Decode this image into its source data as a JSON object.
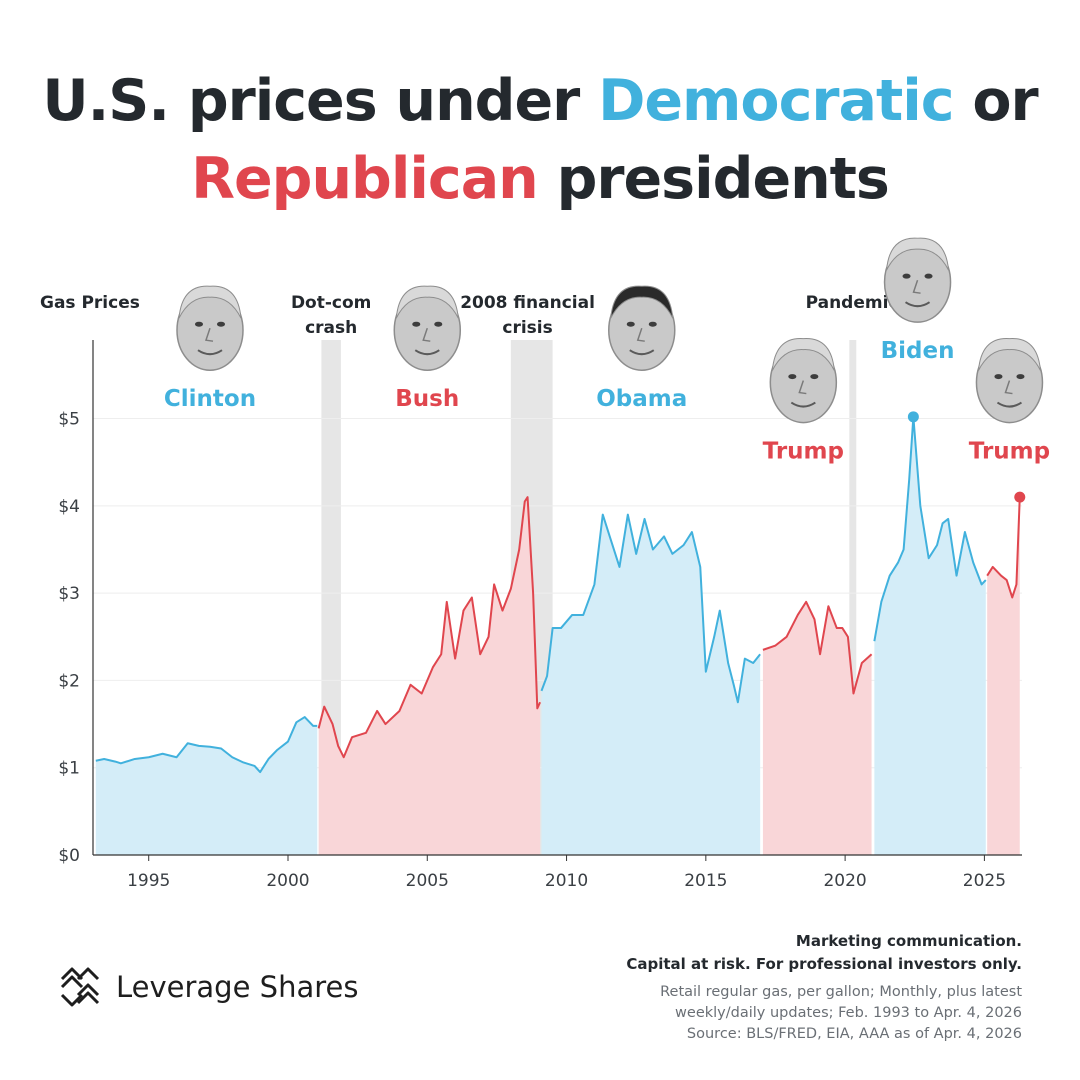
{
  "title": {
    "part1": "U.S. prices under ",
    "democratic": "Democratic",
    "part2": " or",
    "republican": "Republican",
    "part3": " presidents"
  },
  "colors": {
    "democratic": "#41b1dd",
    "democratic_fill": "#d4edf8",
    "republican": "#e0464e",
    "republican_fill": "#f9d6d8",
    "recession": "#e6e6e6",
    "text": "#24292e"
  },
  "chart_data": {
    "type": "area",
    "title": "U.S. prices under Democratic or Republican presidents",
    "ylabel": "Gas Prices",
    "xlabel": "",
    "xlim": [
      1993.0,
      2026.35
    ],
    "ylim": [
      0,
      5.9
    ],
    "x_ticks": [
      1995,
      2000,
      2005,
      2010,
      2015,
      2020,
      2025
    ],
    "y_ticks": [
      {
        "value": 0,
        "label": "$0"
      },
      {
        "value": 1,
        "label": "$1"
      },
      {
        "value": 2,
        "label": "$2"
      },
      {
        "value": 3,
        "label": "$3"
      },
      {
        "value": 4,
        "label": "$4"
      },
      {
        "value": 5,
        "label": "$5"
      }
    ],
    "recessions": [
      {
        "label": "Dot-com crash",
        "start": 2001.2,
        "end": 2001.9
      },
      {
        "label": "2008 financial crisis",
        "start": 2008.0,
        "end": 2009.5
      },
      {
        "label": "Pandemic",
        "start": 2020.15,
        "end": 2020.4
      }
    ],
    "recession_labels": [
      {
        "lines": [
          "Dot-com",
          "crash"
        ],
        "x": 2001.55
      },
      {
        "lines": [
          "2008 financial",
          "crisis"
        ],
        "x": 2008.6
      },
      {
        "lines": [
          "Pandemic"
        ],
        "x": 2020.25
      }
    ],
    "series": [
      {
        "name": "Clinton",
        "party": "democratic",
        "points": [
          [
            1993.1,
            1.08
          ],
          [
            1993.4,
            1.1
          ],
          [
            1993.8,
            1.07
          ],
          [
            1994.0,
            1.05
          ],
          [
            1994.5,
            1.1
          ],
          [
            1995.0,
            1.12
          ],
          [
            1995.5,
            1.16
          ],
          [
            1996.0,
            1.12
          ],
          [
            1996.4,
            1.28
          ],
          [
            1996.8,
            1.25
          ],
          [
            1997.2,
            1.24
          ],
          [
            1997.6,
            1.22
          ],
          [
            1998.0,
            1.12
          ],
          [
            1998.4,
            1.06
          ],
          [
            1998.8,
            1.02
          ],
          [
            1999.0,
            0.95
          ],
          [
            1999.3,
            1.1
          ],
          [
            1999.6,
            1.2
          ],
          [
            2000.0,
            1.3
          ],
          [
            2000.3,
            1.52
          ],
          [
            2000.6,
            1.58
          ],
          [
            2000.9,
            1.48
          ],
          [
            2001.05,
            1.48
          ]
        ]
      },
      {
        "name": "Bush",
        "party": "republican",
        "points": [
          [
            2001.1,
            1.45
          ],
          [
            2001.3,
            1.7
          ],
          [
            2001.6,
            1.5
          ],
          [
            2001.8,
            1.25
          ],
          [
            2002.0,
            1.12
          ],
          [
            2002.3,
            1.35
          ],
          [
            2002.8,
            1.4
          ],
          [
            2003.2,
            1.65
          ],
          [
            2003.5,
            1.5
          ],
          [
            2004.0,
            1.65
          ],
          [
            2004.4,
            1.95
          ],
          [
            2004.8,
            1.85
          ],
          [
            2005.2,
            2.15
          ],
          [
            2005.5,
            2.3
          ],
          [
            2005.7,
            2.9
          ],
          [
            2006.0,
            2.25
          ],
          [
            2006.3,
            2.8
          ],
          [
            2006.6,
            2.95
          ],
          [
            2006.9,
            2.3
          ],
          [
            2007.2,
            2.5
          ],
          [
            2007.4,
            3.1
          ],
          [
            2007.7,
            2.8
          ],
          [
            2008.0,
            3.05
          ],
          [
            2008.3,
            3.5
          ],
          [
            2008.5,
            4.05
          ],
          [
            2008.6,
            4.1
          ],
          [
            2008.8,
            3.0
          ],
          [
            2008.95,
            1.68
          ],
          [
            2009.05,
            1.75
          ]
        ]
      },
      {
        "name": "Obama",
        "party": "democratic",
        "points": [
          [
            2009.1,
            1.88
          ],
          [
            2009.3,
            2.05
          ],
          [
            2009.5,
            2.6
          ],
          [
            2009.8,
            2.6
          ],
          [
            2010.2,
            2.75
          ],
          [
            2010.6,
            2.75
          ],
          [
            2011.0,
            3.1
          ],
          [
            2011.3,
            3.9
          ],
          [
            2011.6,
            3.6
          ],
          [
            2011.9,
            3.3
          ],
          [
            2012.2,
            3.9
          ],
          [
            2012.5,
            3.45
          ],
          [
            2012.8,
            3.85
          ],
          [
            2013.1,
            3.5
          ],
          [
            2013.5,
            3.65
          ],
          [
            2013.8,
            3.45
          ],
          [
            2014.2,
            3.55
          ],
          [
            2014.5,
            3.7
          ],
          [
            2014.8,
            3.3
          ],
          [
            2015.0,
            2.1
          ],
          [
            2015.3,
            2.5
          ],
          [
            2015.5,
            2.8
          ],
          [
            2015.8,
            2.2
          ],
          [
            2016.0,
            1.95
          ],
          [
            2016.15,
            1.75
          ],
          [
            2016.4,
            2.25
          ],
          [
            2016.7,
            2.2
          ],
          [
            2016.95,
            2.3
          ]
        ]
      },
      {
        "name": "Trump",
        "party": "republican",
        "points": [
          [
            2017.05,
            2.35
          ],
          [
            2017.5,
            2.4
          ],
          [
            2017.9,
            2.5
          ],
          [
            2018.3,
            2.75
          ],
          [
            2018.6,
            2.9
          ],
          [
            2018.9,
            2.7
          ],
          [
            2019.1,
            2.3
          ],
          [
            2019.4,
            2.85
          ],
          [
            2019.7,
            2.6
          ],
          [
            2019.9,
            2.6
          ],
          [
            2020.1,
            2.5
          ],
          [
            2020.3,
            1.85
          ],
          [
            2020.6,
            2.2
          ],
          [
            2020.95,
            2.3
          ]
        ]
      },
      {
        "name": "Biden",
        "party": "democratic",
        "points": [
          [
            2021.05,
            2.45
          ],
          [
            2021.3,
            2.9
          ],
          [
            2021.6,
            3.2
          ],
          [
            2021.9,
            3.35
          ],
          [
            2022.1,
            3.5
          ],
          [
            2022.3,
            4.3
          ],
          [
            2022.45,
            5.02
          ],
          [
            2022.7,
            4.0
          ],
          [
            2023.0,
            3.4
          ],
          [
            2023.3,
            3.55
          ],
          [
            2023.5,
            3.8
          ],
          [
            2023.7,
            3.85
          ],
          [
            2024.0,
            3.2
          ],
          [
            2024.3,
            3.7
          ],
          [
            2024.6,
            3.35
          ],
          [
            2024.9,
            3.1
          ],
          [
            2025.05,
            3.15
          ]
        ]
      },
      {
        "name": "Trump",
        "party": "republican",
        "points": [
          [
            2025.1,
            3.2
          ],
          [
            2025.3,
            3.3
          ],
          [
            2025.6,
            3.2
          ],
          [
            2025.8,
            3.15
          ],
          [
            2026.0,
            2.95
          ],
          [
            2026.15,
            3.1
          ],
          [
            2026.27,
            4.1
          ]
        ]
      }
    ],
    "highlight_points": [
      {
        "x": 2022.45,
        "y": 5.02,
        "party": "democratic"
      },
      {
        "x": 2026.27,
        "y": 4.1,
        "party": "republican"
      }
    ],
    "president_labels": [
      {
        "name": "Clinton",
        "party": "democratic",
        "x": 1997.2,
        "y": 5.05
      },
      {
        "name": "Bush",
        "party": "republican",
        "x": 2005.0,
        "y": 5.05
      },
      {
        "name": "Obama",
        "party": "democratic",
        "x": 2012.7,
        "y": 5.05
      },
      {
        "name": "Trump",
        "party": "republican",
        "x": 2018.5,
        "y": 4.45
      },
      {
        "name": "Biden",
        "party": "democratic",
        "x": 2022.6,
        "y": 5.6
      },
      {
        "name": "Trump",
        "party": "republican",
        "x": 2025.9,
        "y": 4.45
      }
    ]
  },
  "brand": {
    "logo_icon": "leverage-shares-logo",
    "name": "Leverage Shares"
  },
  "disclaimer": {
    "line1": "Marketing communication.",
    "line2": "Capital at risk. For professional investors only."
  },
  "source_note": {
    "line1": "Retail regular gas, per gallon; Monthly, plus latest",
    "line2": "weekly/daily updates; Feb. 1993 to Apr. 4, 2026",
    "line3": "Source: BLS/FRED, EIA, AAA as of Apr. 4, 2026"
  }
}
